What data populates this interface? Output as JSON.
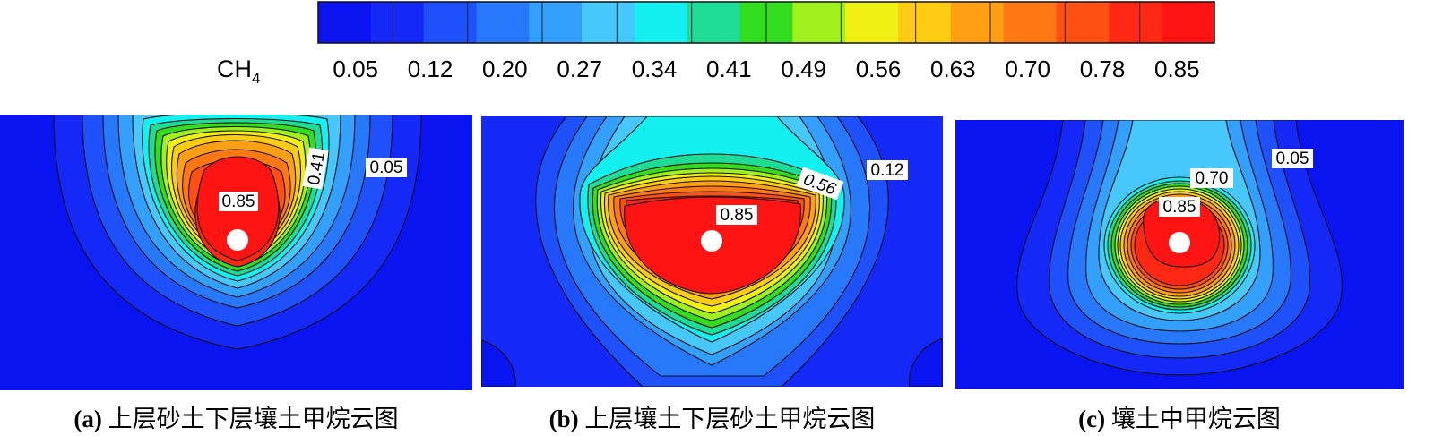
{
  "legend": {
    "variable": "CH",
    "subscript": "4",
    "ticks": [
      "0.05",
      "0.12",
      "0.20",
      "0.27",
      "0.34",
      "0.41",
      "0.49",
      "0.56",
      "0.63",
      "0.70",
      "0.78",
      "0.85"
    ],
    "colors": [
      "#0a14f0",
      "#1428f8",
      "#1e50fc",
      "#2878fc",
      "#32a0fc",
      "#46c8fc",
      "#14f0f0",
      "#1edc96",
      "#32dc1e",
      "#a0f01e",
      "#f0f014",
      "#ffcc14",
      "#ffa014",
      "#ff7814",
      "#ff5014",
      "#ff2814",
      "#ff1414"
    ]
  },
  "panels": [
    {
      "id": "a",
      "letter": "(a)",
      "caption": "上层砂土下层壤土甲烷云图",
      "labels": [
        "0.85",
        "0.41",
        "0.05"
      ]
    },
    {
      "id": "b",
      "letter": "(b)",
      "caption": "上层壤土下层砂土甲烷云图",
      "labels": [
        "0.85",
        "0.56",
        "0.12"
      ]
    },
    {
      "id": "c",
      "letter": "(c)",
      "caption": "壤土中甲烷云图",
      "labels": [
        "0.85",
        "0.70",
        "0.05"
      ]
    }
  ]
}
